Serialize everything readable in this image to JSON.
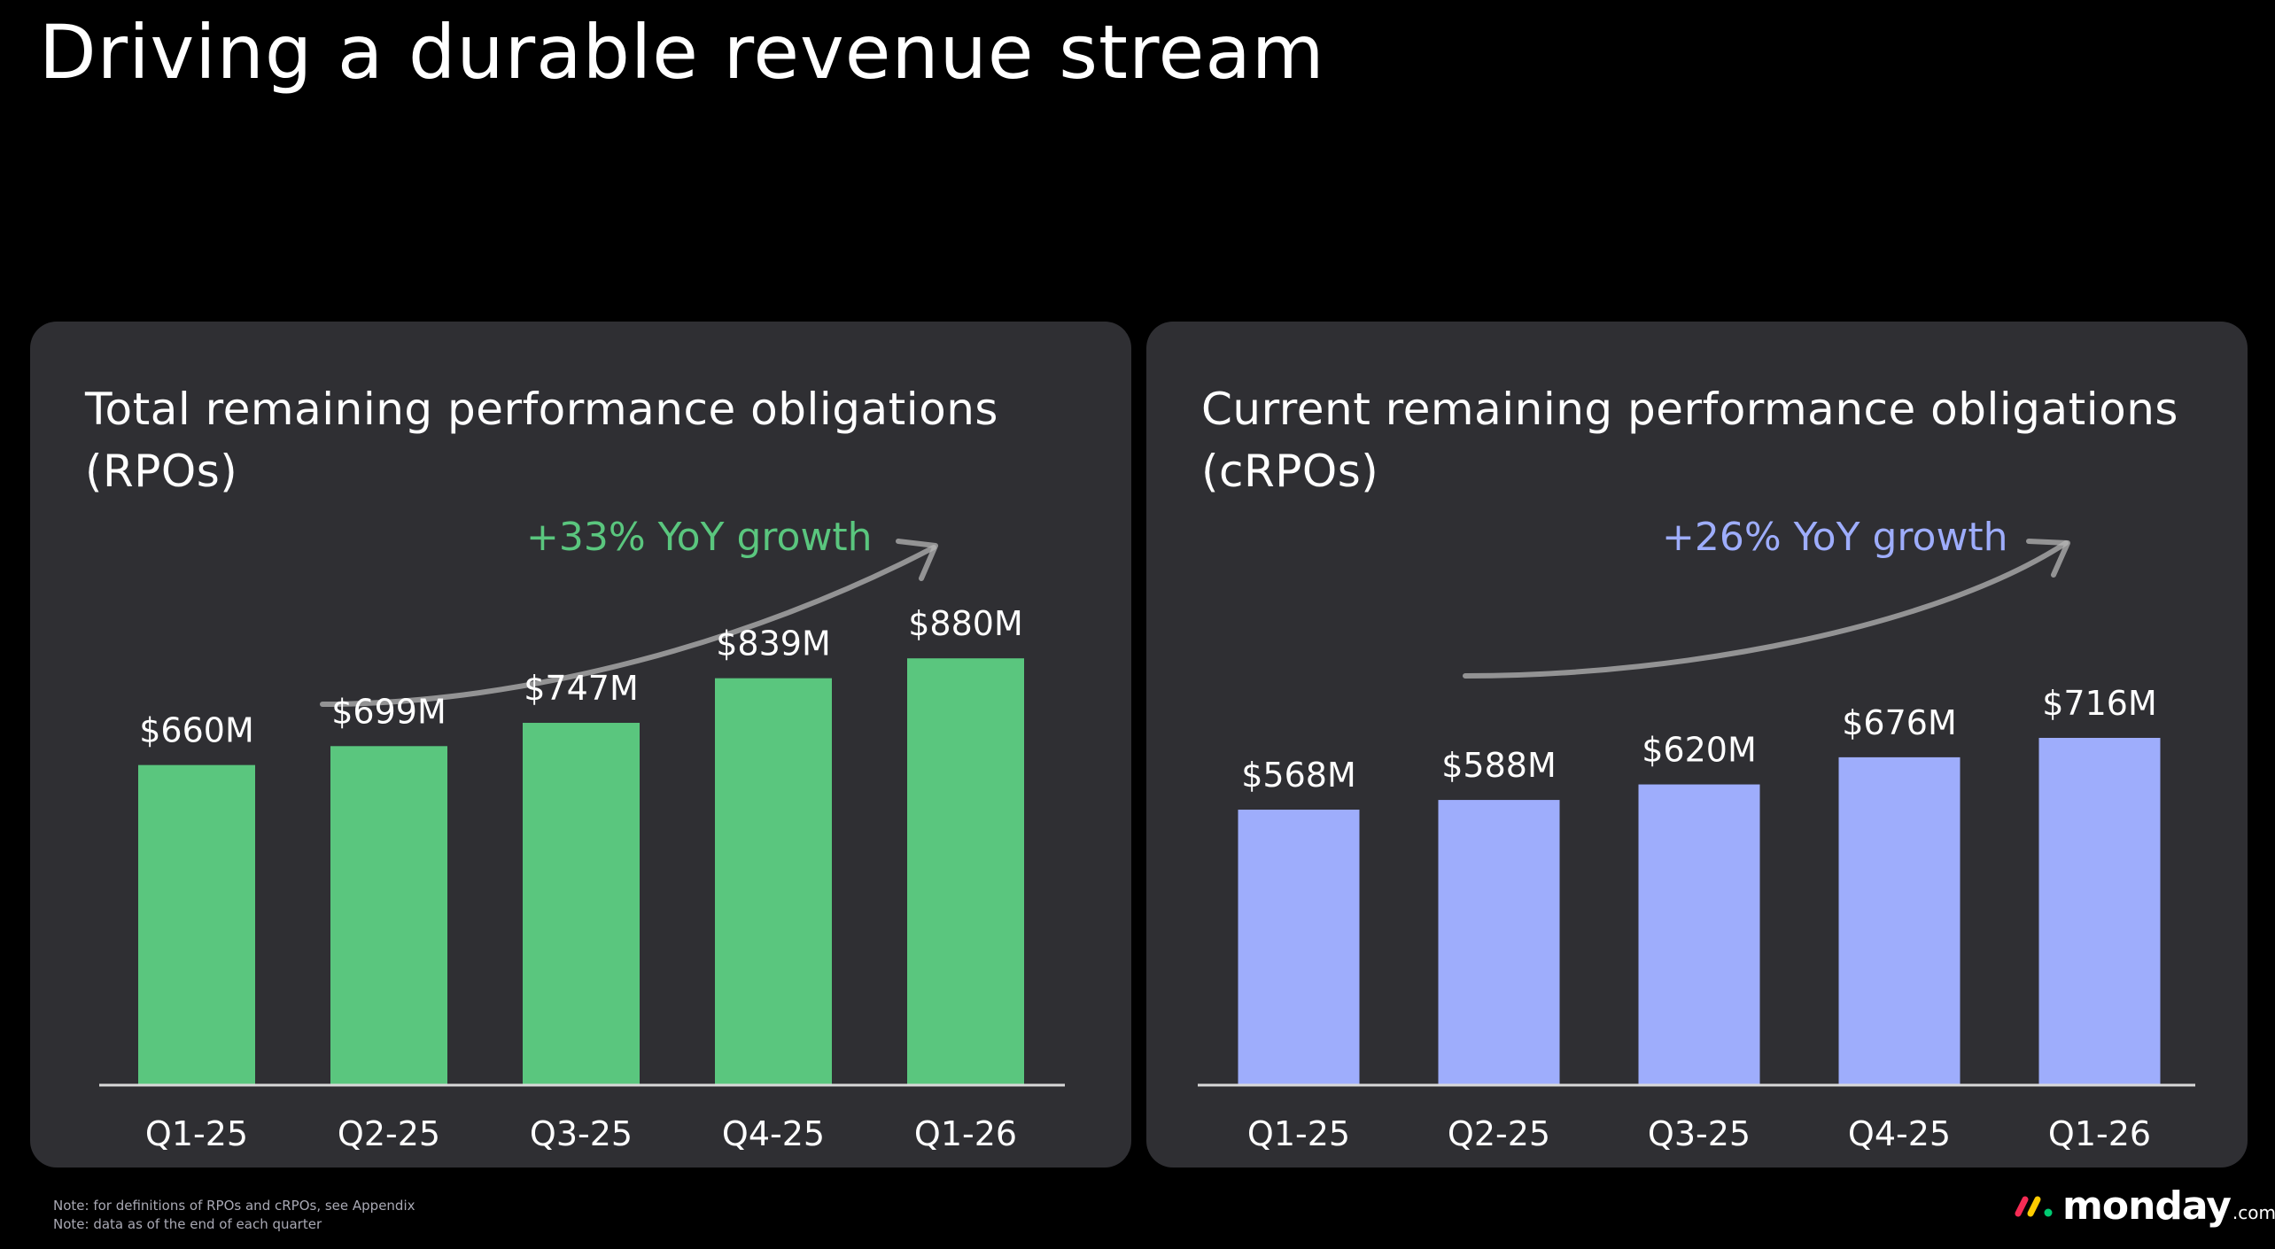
{
  "title": "Driving a durable revenue stream",
  "colors": {
    "background": "#000000",
    "panel": "#2f2f33",
    "rpo_bar": "#5ac67e",
    "crpo_bar": "#9eadfc",
    "arrow": "#b5b5b5",
    "axis": "#d9d9d9"
  },
  "chart_data": [
    {
      "type": "bar",
      "title_lines": [
        "Total remaining performance obligations",
        "(RPOs)"
      ],
      "annotation": "+33% YoY growth",
      "categories": [
        "Q1-25",
        "Q2-25",
        "Q3-25",
        "Q4-25",
        "Q1-26"
      ],
      "values": [
        660,
        699,
        747,
        839,
        880
      ],
      "value_labels": [
        "$660M",
        "$699M",
        "$747M",
        "$839M",
        "$880M"
      ],
      "unit": "$M",
      "color": "#5ac67e",
      "ylim": [
        0,
        1000
      ],
      "grid": false,
      "legend": "none"
    },
    {
      "type": "bar",
      "title_lines": [
        "Current remaining performance obligations",
        "(cRPOs)"
      ],
      "annotation": "+26% YoY growth",
      "categories": [
        "Q1-25",
        "Q2-25",
        "Q3-25",
        "Q4-25",
        "Q1-26"
      ],
      "values": [
        568,
        588,
        620,
        676,
        716
      ],
      "value_labels": [
        "$568M",
        "$588M",
        "$620M",
        "$676M",
        "$716M"
      ],
      "unit": "$M",
      "color": "#9eadfc",
      "ylim": [
        0,
        1000
      ],
      "grid": false,
      "legend": "none"
    }
  ],
  "footnotes": [
    "Note: for definitions of RPOs and cRPOs, see Appendix",
    "Note: data as of the end of each quarter"
  ],
  "logo": {
    "word": "monday",
    "suffix": ".com"
  }
}
